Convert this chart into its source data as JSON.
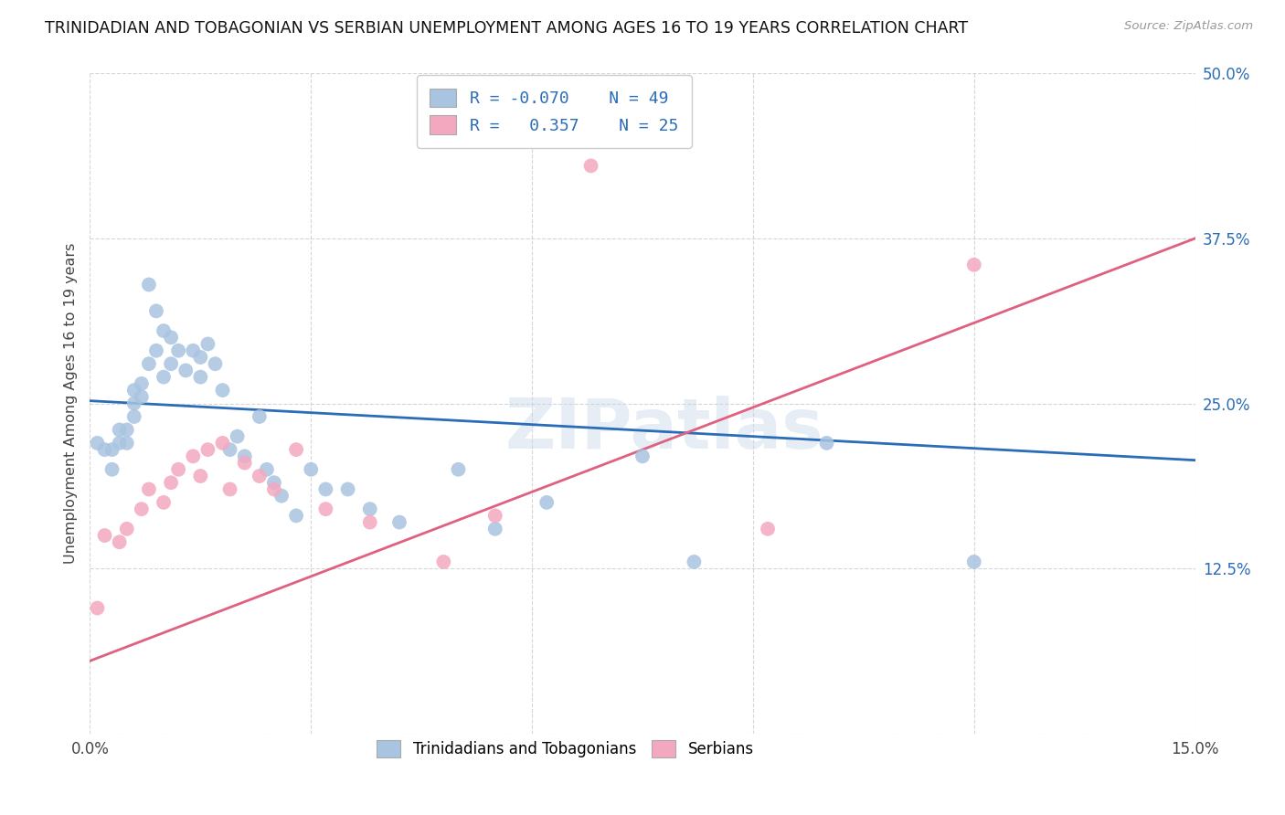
{
  "title": "TRINIDADIAN AND TOBAGONIAN VS SERBIAN UNEMPLOYMENT AMONG AGES 16 TO 19 YEARS CORRELATION CHART",
  "source": "Source: ZipAtlas.com",
  "ylabel": "Unemployment Among Ages 16 to 19 years",
  "xlim": [
    0.0,
    0.15
  ],
  "ylim": [
    0.0,
    0.5
  ],
  "xticks": [
    0.0,
    0.03,
    0.06,
    0.09,
    0.12,
    0.15
  ],
  "xtick_labels": [
    "0.0%",
    "",
    "",
    "",
    "",
    "15.0%"
  ],
  "yticks": [
    0.0,
    0.125,
    0.25,
    0.375,
    0.5
  ],
  "ytick_labels": [
    "",
    "12.5%",
    "25.0%",
    "37.5%",
    "50.0%"
  ],
  "blue_R": "-0.070",
  "blue_N": "49",
  "pink_R": "0.357",
  "pink_N": "25",
  "legend_label_blue": "Trinidadians and Tobagonians",
  "legend_label_pink": "Serbians",
  "blue_color": "#a8c4e0",
  "pink_color": "#f4a8c0",
  "blue_line_color": "#2b6cb8",
  "pink_line_color": "#e06080",
  "watermark": "ZIPatlas",
  "blue_line_x0": 0.0,
  "blue_line_y0": 0.252,
  "blue_line_x1": 0.15,
  "blue_line_y1": 0.207,
  "pink_line_x0": 0.0,
  "pink_line_y0": 0.055,
  "pink_line_x1": 0.15,
  "pink_line_y1": 0.375,
  "blue_x": [
    0.001,
    0.002,
    0.003,
    0.003,
    0.004,
    0.004,
    0.005,
    0.005,
    0.006,
    0.006,
    0.006,
    0.007,
    0.007,
    0.008,
    0.008,
    0.009,
    0.009,
    0.01,
    0.01,
    0.011,
    0.011,
    0.012,
    0.013,
    0.014,
    0.015,
    0.015,
    0.016,
    0.017,
    0.018,
    0.019,
    0.02,
    0.021,
    0.023,
    0.024,
    0.025,
    0.026,
    0.028,
    0.03,
    0.032,
    0.035,
    0.038,
    0.042,
    0.05,
    0.055,
    0.062,
    0.075,
    0.082,
    0.1,
    0.12
  ],
  "blue_y": [
    0.22,
    0.215,
    0.2,
    0.215,
    0.23,
    0.22,
    0.22,
    0.23,
    0.26,
    0.25,
    0.24,
    0.265,
    0.255,
    0.34,
    0.28,
    0.32,
    0.29,
    0.305,
    0.27,
    0.3,
    0.28,
    0.29,
    0.275,
    0.29,
    0.27,
    0.285,
    0.295,
    0.28,
    0.26,
    0.215,
    0.225,
    0.21,
    0.24,
    0.2,
    0.19,
    0.18,
    0.165,
    0.2,
    0.185,
    0.185,
    0.17,
    0.16,
    0.2,
    0.155,
    0.175,
    0.21,
    0.13,
    0.22,
    0.13
  ],
  "pink_x": [
    0.001,
    0.002,
    0.004,
    0.005,
    0.007,
    0.008,
    0.01,
    0.011,
    0.012,
    0.014,
    0.015,
    0.016,
    0.018,
    0.019,
    0.021,
    0.023,
    0.025,
    0.028,
    0.032,
    0.038,
    0.048,
    0.055,
    0.068,
    0.092,
    0.12
  ],
  "pink_y": [
    0.095,
    0.15,
    0.145,
    0.155,
    0.17,
    0.185,
    0.175,
    0.19,
    0.2,
    0.21,
    0.195,
    0.215,
    0.22,
    0.185,
    0.205,
    0.195,
    0.185,
    0.215,
    0.17,
    0.16,
    0.13,
    0.165,
    0.43,
    0.155,
    0.355
  ]
}
